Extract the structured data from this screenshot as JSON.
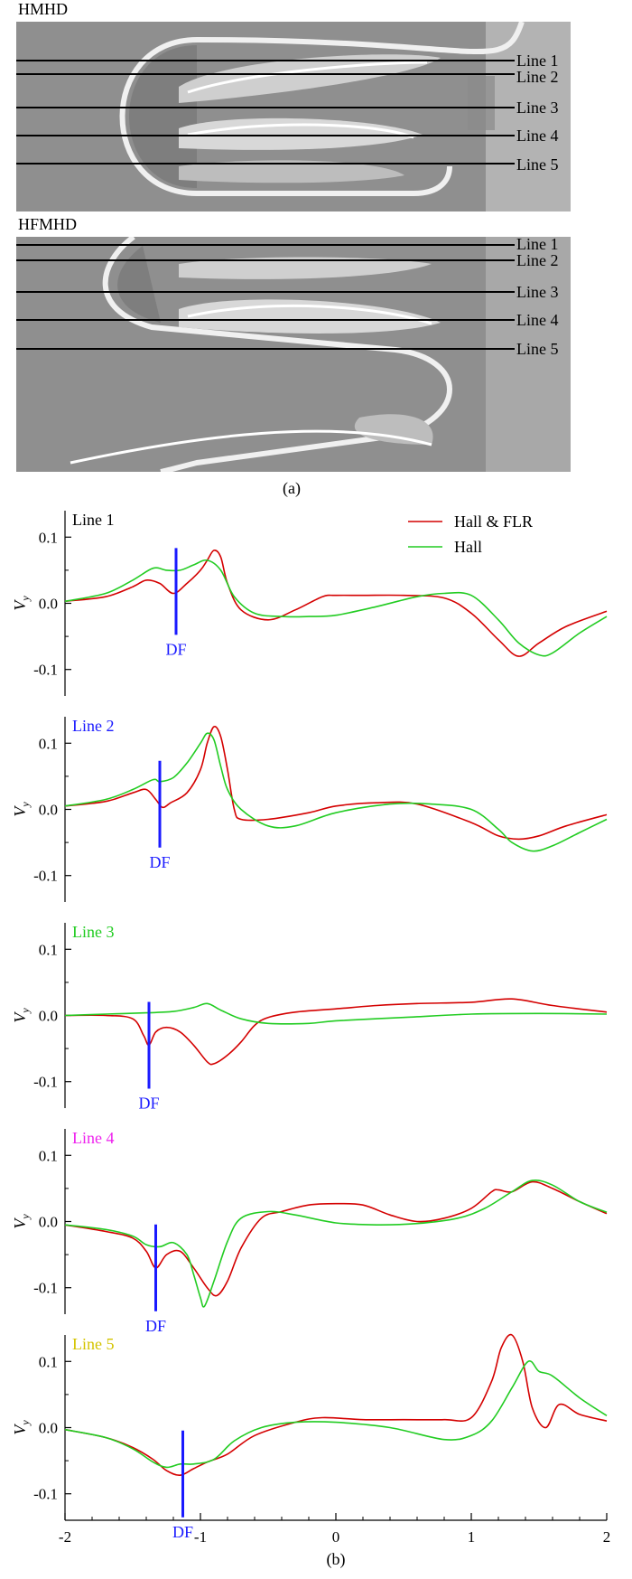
{
  "panel_a": {
    "top_title": "HMHD",
    "bottom_title": "HFMHD",
    "line_labels": [
      "Line 1",
      "Line 2",
      "Line 3",
      "Line 4",
      "Line 5"
    ],
    "caption": "(a)"
  },
  "panel_b": {
    "caption": "(b)",
    "legend": [
      "Hall & FLR",
      "Hall"
    ],
    "df_label": "DF"
  },
  "colors": {
    "hall_flr": "#d40000",
    "hall": "#22cc22",
    "df_marker": "#1a1aff",
    "line_label_colors": [
      "#000000",
      "#1a1aff",
      "#22cc22",
      "#ee22ee",
      "#d4c400"
    ]
  },
  "chart_data": [
    {
      "type": "line",
      "label": "Line 1",
      "ylabel": "V_y",
      "xlim": [
        -2,
        2
      ],
      "ylim": [
        -0.14,
        0.14
      ],
      "xticks": [
        "-2",
        "-1",
        "0",
        "1",
        "2"
      ],
      "yticks": [
        "-0.1",
        "0.0",
        "0.1"
      ],
      "df_x": -1.18,
      "series": [
        {
          "name": "Hall & FLR",
          "x": [
            -2,
            -1.7,
            -1.5,
            -1.4,
            -1.3,
            -1.2,
            -1.1,
            -1.0,
            -0.95,
            -0.9,
            -0.85,
            -0.8,
            -0.7,
            -0.5,
            -0.3,
            -0.1,
            0,
            0.2,
            0.5,
            0.8,
            1.0,
            1.2,
            1.35,
            1.5,
            1.7,
            2.0
          ],
          "y": [
            0.003,
            0.01,
            0.025,
            0.035,
            0.03,
            0.015,
            0.03,
            0.05,
            0.065,
            0.08,
            0.07,
            0.03,
            -0.01,
            -0.025,
            -0.01,
            0.01,
            0.012,
            0.012,
            0.012,
            0.008,
            -0.015,
            -0.055,
            -0.08,
            -0.06,
            -0.035,
            -0.012
          ]
        },
        {
          "name": "Hall",
          "x": [
            -2,
            -1.7,
            -1.5,
            -1.35,
            -1.25,
            -1.15,
            -1.05,
            -0.95,
            -0.85,
            -0.75,
            -0.6,
            -0.4,
            -0.2,
            0,
            0.3,
            0.6,
            0.8,
            1.0,
            1.2,
            1.35,
            1.5,
            1.6,
            1.8,
            2.0
          ],
          "y": [
            0.003,
            0.015,
            0.035,
            0.053,
            0.05,
            0.05,
            0.058,
            0.065,
            0.05,
            0.01,
            -0.015,
            -0.02,
            -0.02,
            -0.018,
            -0.005,
            0.01,
            0.015,
            0.012,
            -0.025,
            -0.06,
            -0.078,
            -0.075,
            -0.045,
            -0.02
          ]
        }
      ]
    },
    {
      "type": "line",
      "label": "Line 2",
      "ylabel": "V_y",
      "xlim": [
        -2,
        2
      ],
      "ylim": [
        -0.14,
        0.14
      ],
      "xticks": [
        "-2",
        "-1",
        "0",
        "1",
        "2"
      ],
      "yticks": [
        "-0.1",
        "0.0",
        "0.1"
      ],
      "df_x": -1.3,
      "series": [
        {
          "name": "Hall & FLR",
          "x": [
            -2,
            -1.7,
            -1.5,
            -1.4,
            -1.33,
            -1.28,
            -1.22,
            -1.1,
            -1.0,
            -0.95,
            -0.9,
            -0.85,
            -0.8,
            -0.75,
            -0.7,
            -0.5,
            -0.2,
            0,
            0.3,
            0.6,
            1.0,
            1.2,
            1.35,
            1.5,
            1.7,
            2.0
          ],
          "y": [
            0.005,
            0.012,
            0.025,
            0.03,
            0.015,
            0.003,
            0.01,
            0.025,
            0.06,
            0.1,
            0.125,
            0.11,
            0.06,
            0.0,
            -0.015,
            -0.015,
            -0.005,
            0.005,
            0.01,
            0.008,
            -0.02,
            -0.04,
            -0.045,
            -0.04,
            -0.025,
            -0.008
          ]
        },
        {
          "name": "Hall",
          "x": [
            -2,
            -1.7,
            -1.5,
            -1.35,
            -1.3,
            -1.2,
            -1.1,
            -1.0,
            -0.95,
            -0.9,
            -0.85,
            -0.8,
            -0.7,
            -0.5,
            -0.3,
            0,
            0.4,
            0.7,
            1.0,
            1.2,
            1.3,
            1.45,
            1.6,
            1.8,
            2.0
          ],
          "y": [
            0.005,
            0.015,
            0.03,
            0.045,
            0.042,
            0.048,
            0.07,
            0.1,
            0.115,
            0.105,
            0.065,
            0.03,
            0.0,
            -0.025,
            -0.025,
            -0.005,
            0.008,
            0.008,
            0.0,
            -0.03,
            -0.05,
            -0.063,
            -0.055,
            -0.035,
            -0.015
          ]
        }
      ]
    },
    {
      "type": "line",
      "label": "Line 3",
      "ylabel": "V_y",
      "xlim": [
        -2,
        2
      ],
      "ylim": [
        -0.14,
        0.14
      ],
      "xticks": [
        "-2",
        "-1",
        "0",
        "1",
        "2"
      ],
      "yticks": [
        "-0.1",
        "0.0",
        "0.1"
      ],
      "df_x": -1.38,
      "series": [
        {
          "name": "Hall & FLR",
          "x": [
            -2,
            -1.7,
            -1.5,
            -1.42,
            -1.38,
            -1.33,
            -1.25,
            -1.15,
            -1.05,
            -0.95,
            -0.9,
            -0.8,
            -0.7,
            -0.6,
            -0.5,
            -0.3,
            0,
            0.3,
            0.6,
            1.0,
            1.3,
            1.6,
            2.0
          ],
          "y": [
            0,
            0,
            -0.005,
            -0.03,
            -0.045,
            -0.025,
            -0.018,
            -0.025,
            -0.045,
            -0.07,
            -0.073,
            -0.06,
            -0.04,
            -0.015,
            -0.003,
            0.005,
            0.01,
            0.015,
            0.018,
            0.02,
            0.025,
            0.015,
            0.005
          ]
        },
        {
          "name": "Hall",
          "x": [
            -2,
            -1.7,
            -1.4,
            -1.2,
            -1.05,
            -0.95,
            -0.85,
            -0.7,
            -0.5,
            -0.2,
            0,
            0.5,
            1.0,
            1.5,
            2.0
          ],
          "y": [
            0,
            0.002,
            0.004,
            0.006,
            0.012,
            0.018,
            0.008,
            -0.005,
            -0.012,
            -0.012,
            -0.008,
            -0.003,
            0.002,
            0.003,
            0.002
          ]
        }
      ]
    },
    {
      "type": "line",
      "label": "Line 4",
      "ylabel": "V_y",
      "xlim": [
        -2,
        2
      ],
      "ylim": [
        -0.14,
        0.14
      ],
      "xticks": [
        "-2",
        "-1",
        "0",
        "1",
        "2"
      ],
      "yticks": [
        "-0.1",
        "0.0",
        "0.1"
      ],
      "df_x": -1.33,
      "series": [
        {
          "name": "Hall & FLR",
          "x": [
            -2,
            -1.7,
            -1.5,
            -1.4,
            -1.33,
            -1.25,
            -1.15,
            -1.05,
            -0.95,
            -0.88,
            -0.8,
            -0.7,
            -0.55,
            -0.4,
            -0.2,
            0,
            0.2,
            0.4,
            0.6,
            0.8,
            1.0,
            1.15,
            1.2,
            1.3,
            1.45,
            1.6,
            1.8,
            2.0
          ],
          "y": [
            -0.005,
            -0.015,
            -0.025,
            -0.045,
            -0.07,
            -0.05,
            -0.045,
            -0.07,
            -0.1,
            -0.112,
            -0.09,
            -0.04,
            0.005,
            0.015,
            0.025,
            0.027,
            0.025,
            0.01,
            0.0,
            0.005,
            0.02,
            0.045,
            0.048,
            0.045,
            0.06,
            0.05,
            0.03,
            0.012
          ]
        },
        {
          "name": "Hall",
          "x": [
            -2,
            -1.7,
            -1.5,
            -1.4,
            -1.3,
            -1.2,
            -1.1,
            -1.05,
            -1.0,
            -0.97,
            -0.9,
            -0.8,
            -0.7,
            -0.5,
            -0.3,
            0,
            0.3,
            0.6,
            0.9,
            1.1,
            1.3,
            1.45,
            1.6,
            1.8,
            2.0
          ],
          "y": [
            -0.005,
            -0.012,
            -0.022,
            -0.035,
            -0.038,
            -0.032,
            -0.05,
            -0.08,
            -0.115,
            -0.128,
            -0.09,
            -0.03,
            0.005,
            0.015,
            0.01,
            -0.002,
            -0.005,
            -0.003,
            0.005,
            0.02,
            0.045,
            0.062,
            0.055,
            0.03,
            0.014
          ]
        }
      ]
    },
    {
      "type": "line",
      "label": "Line 5",
      "ylabel": "V_y",
      "xlim": [
        -2,
        2
      ],
      "ylim": [
        -0.14,
        0.14
      ],
      "xticks": [
        "-2",
        "-1",
        "0",
        "1",
        "2"
      ],
      "yticks": [
        "-0.1",
        "0.0",
        "0.1"
      ],
      "df_x": -1.13,
      "series": [
        {
          "name": "Hall & FLR",
          "x": [
            -2,
            -1.7,
            -1.5,
            -1.35,
            -1.25,
            -1.15,
            -1.05,
            -0.95,
            -0.8,
            -0.6,
            -0.3,
            -0.1,
            0.2,
            0.5,
            0.8,
            1.0,
            1.15,
            1.22,
            1.3,
            1.38,
            1.45,
            1.55,
            1.65,
            1.8,
            2.0
          ],
          "y": [
            -0.003,
            -0.015,
            -0.03,
            -0.048,
            -0.065,
            -0.072,
            -0.062,
            -0.052,
            -0.04,
            -0.012,
            0.008,
            0.015,
            0.012,
            0.012,
            0.012,
            0.015,
            0.07,
            0.12,
            0.14,
            0.1,
            0.03,
            0.0,
            0.035,
            0.02,
            0.01
          ]
        },
        {
          "name": "Hall",
          "x": [
            -2,
            -1.7,
            -1.5,
            -1.35,
            -1.25,
            -1.15,
            -1.05,
            -0.9,
            -0.75,
            -0.55,
            -0.3,
            0,
            0.4,
            0.8,
            1.0,
            1.15,
            1.3,
            1.42,
            1.5,
            1.6,
            1.8,
            2.0
          ],
          "y": [
            -0.003,
            -0.015,
            -0.032,
            -0.052,
            -0.06,
            -0.055,
            -0.055,
            -0.048,
            -0.02,
            0.0,
            0.008,
            0.008,
            0.0,
            -0.018,
            -0.012,
            0.01,
            0.06,
            0.1,
            0.085,
            0.078,
            0.045,
            0.018
          ]
        }
      ]
    }
  ]
}
